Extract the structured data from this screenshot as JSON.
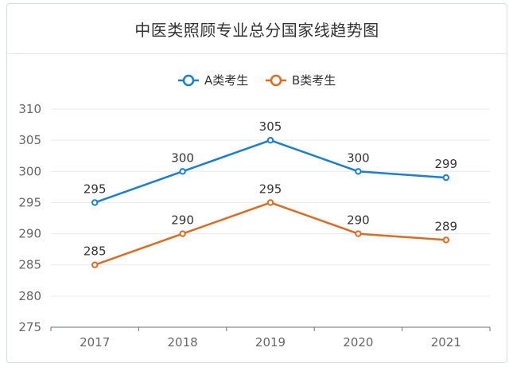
{
  "chart_data": {
    "type": "line",
    "title": "中医类照顾专业总分国家线趋势图",
    "categories": [
      "2017",
      "2018",
      "2019",
      "2020",
      "2021"
    ],
    "series": [
      {
        "name": "A类考生",
        "values": [
          295,
          300,
          305,
          300,
          299
        ],
        "color": "#1a7fd4"
      },
      {
        "name": "B类考生",
        "values": [
          285,
          290,
          295,
          290,
          289
        ],
        "color": "#dd6b20"
      }
    ],
    "ylim": [
      275,
      310
    ],
    "yticks": [
      275,
      280,
      285,
      290,
      295,
      300,
      305,
      310
    ],
    "xlabel": "",
    "ylabel": "",
    "grid": true,
    "legend": "top-center"
  }
}
